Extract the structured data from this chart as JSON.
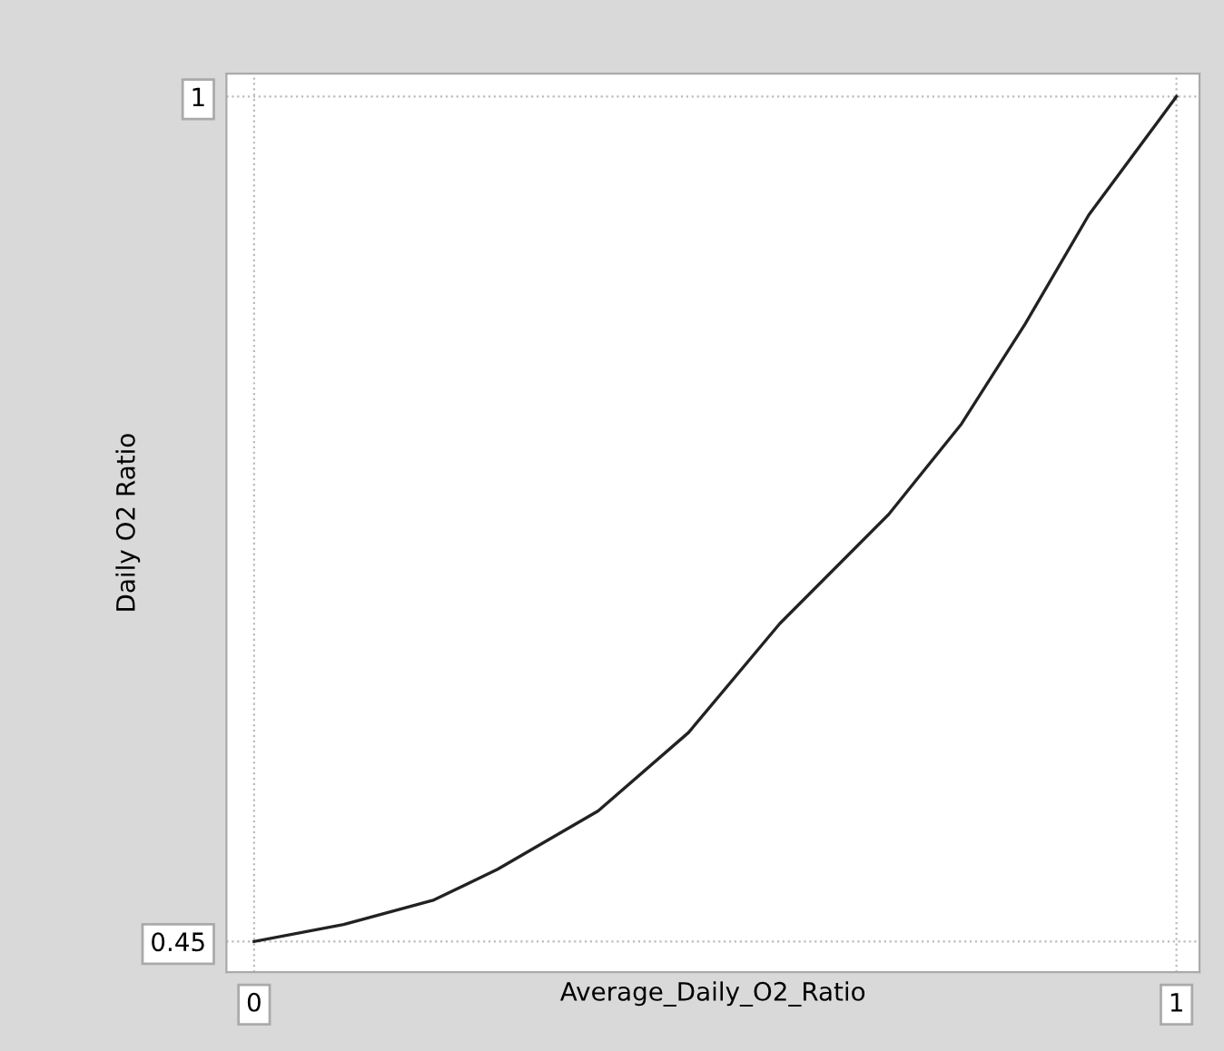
{
  "chart_data": {
    "type": "line",
    "xlabel": "Average_Daily_O2_Ratio",
    "ylabel": "Daily O2 Ratio",
    "x": [
      0,
      0.097,
      0.195,
      0.264,
      0.373,
      0.471,
      0.57,
      0.688,
      0.767,
      0.836,
      0.905,
      1
    ],
    "series": [
      {
        "color": "#222222",
        "values": [
          0.45,
          0.461,
          0.477,
          0.497,
          0.535,
          0.586,
          0.657,
          0.728,
          0.787,
          0.852,
          0.923,
          1
        ]
      }
    ],
    "xlim": [
      -0.03,
      1.025
    ],
    "ylim": [
      0.43,
      1.015
    ],
    "xticks": [
      0,
      1
    ],
    "yticks": [
      0.45,
      1
    ],
    "grid": true,
    "marker": "none",
    "line_style": "solid"
  }
}
